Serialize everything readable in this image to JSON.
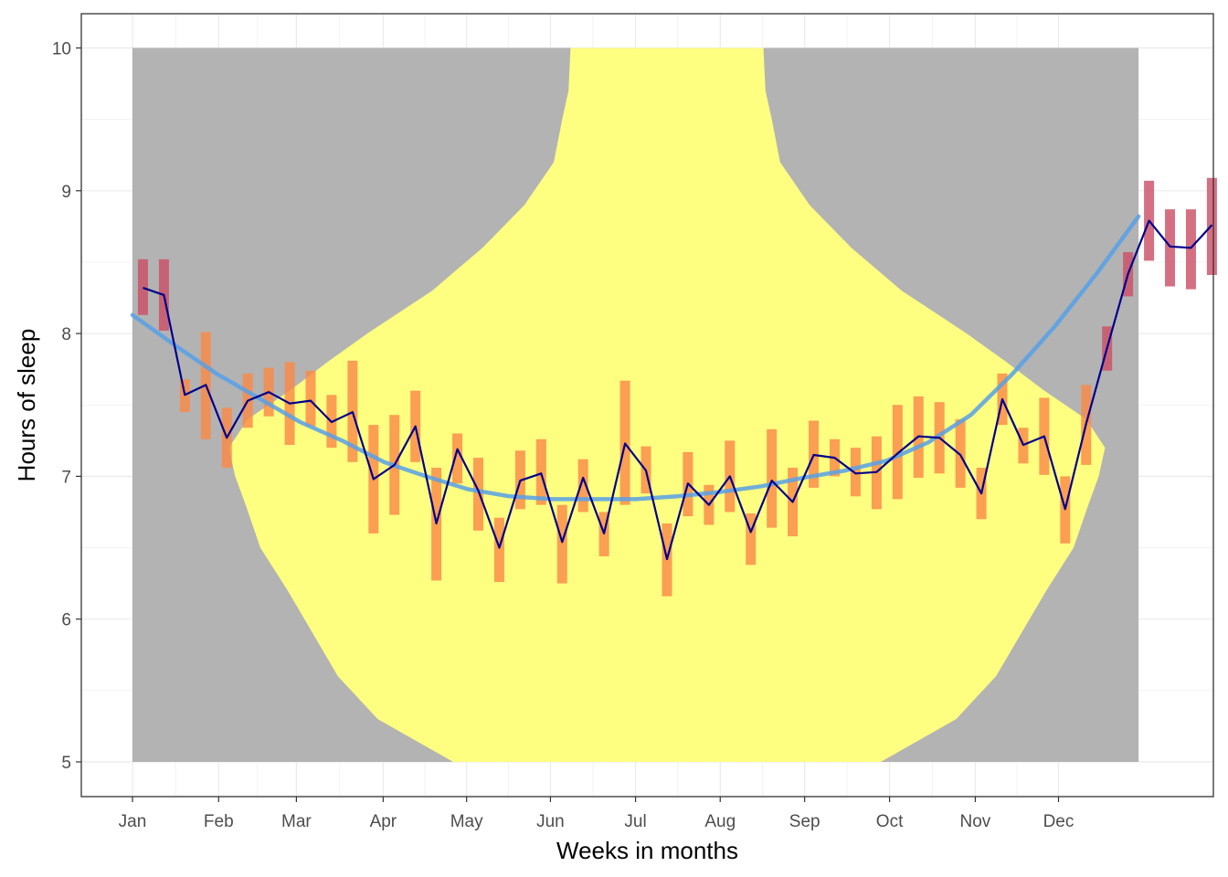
{
  "chart_data": {
    "type": "line",
    "title": "",
    "xlabel": "Weeks in months",
    "ylabel": "Hours of sleep",
    "xlim": [
      0,
      53
    ],
    "ylim": [
      5,
      10
    ],
    "x_tick_labels": [
      "Jan",
      "Feb",
      "Mar",
      "Apr",
      "May",
      "Jun",
      "Jul",
      "Aug",
      "Sep",
      "Oct",
      "Nov",
      "Dec"
    ],
    "x_tick_positions": [
      1,
      5.11,
      8.82,
      12.96,
      16.94,
      20.94,
      25,
      29.04,
      33.07,
      37.12,
      41.21,
      45.18
    ],
    "y_ticks": [
      5,
      6,
      7,
      8,
      9,
      10
    ],
    "grid": true,
    "background_band": {
      "x_from": 1,
      "x_to": 49,
      "y_from": 5,
      "y_to": 10,
      "color": "#b3b3b3"
    },
    "violin_color": "#ffff7f",
    "violin_half_width": [
      [
        5.0,
        10.2
      ],
      [
        5.3,
        13.8
      ],
      [
        5.6,
        15.7
      ],
      [
        5.9,
        16.9
      ],
      [
        6.2,
        18.1
      ],
      [
        6.5,
        19.4
      ],
      [
        6.8,
        20.1
      ],
      [
        7.0,
        20.6
      ],
      [
        7.2,
        20.9
      ],
      [
        7.4,
        20.0
      ],
      [
        7.6,
        18.0
      ],
      [
        7.8,
        16.2
      ],
      [
        8.0,
        14.3
      ],
      [
        8.3,
        11.2
      ],
      [
        8.6,
        8.8
      ],
      [
        8.9,
        6.8
      ],
      [
        9.2,
        5.4
      ],
      [
        9.5,
        5.0
      ],
      [
        9.7,
        4.7
      ],
      [
        10.0,
        4.6
      ]
    ],
    "weekly_mean": [
      8.32,
      8.27,
      7.57,
      7.64,
      7.27,
      7.53,
      7.59,
      7.51,
      7.53,
      7.38,
      7.45,
      6.98,
      7.08,
      7.35,
      6.67,
      7.19,
      6.9,
      6.5,
      6.97,
      7.02,
      6.54,
      6.99,
      6.6,
      7.23,
      7.04,
      6.42,
      6.95,
      6.8,
      7.0,
      6.61,
      6.97,
      6.82,
      7.15,
      7.13,
      7.02,
      7.03,
      7.16,
      7.28,
      7.27,
      7.15,
      6.88,
      7.54,
      7.22,
      7.28,
      6.77,
      7.37,
      7.9,
      8.42,
      8.79,
      8.61,
      8.6,
      8.76
    ],
    "weekly_range": [
      [
        8.13,
        8.52
      ],
      [
        8.02,
        8.52
      ],
      [
        7.45,
        7.68
      ],
      [
        7.26,
        8.01
      ],
      [
        7.06,
        7.48
      ],
      [
        7.34,
        7.72
      ],
      [
        7.42,
        7.76
      ],
      [
        7.22,
        7.8
      ],
      [
        7.35,
        7.74
      ],
      [
        7.2,
        7.57
      ],
      [
        7.1,
        7.81
      ],
      [
        6.6,
        7.36
      ],
      [
        6.73,
        7.43
      ],
      [
        7.1,
        7.6
      ],
      [
        6.27,
        7.06
      ],
      [
        6.95,
        7.3
      ],
      [
        6.62,
        7.13
      ],
      [
        6.26,
        6.71
      ],
      [
        6.77,
        7.18
      ],
      [
        6.8,
        7.26
      ],
      [
        6.25,
        6.8
      ],
      [
        6.75,
        7.12
      ],
      [
        6.44,
        6.75
      ],
      [
        6.8,
        7.67
      ],
      [
        6.88,
        7.21
      ],
      [
        6.16,
        6.67
      ],
      [
        6.72,
        7.17
      ],
      [
        6.66,
        6.94
      ],
      [
        6.75,
        7.25
      ],
      [
        6.38,
        6.74
      ],
      [
        6.64,
        7.33
      ],
      [
        6.58,
        7.06
      ],
      [
        6.92,
        7.39
      ],
      [
        7.0,
        7.26
      ],
      [
        6.86,
        7.2
      ],
      [
        6.77,
        7.28
      ],
      [
        6.84,
        7.5
      ],
      [
        6.99,
        7.56
      ],
      [
        7.02,
        7.52
      ],
      [
        6.92,
        7.4
      ],
      [
        6.7,
        7.06
      ],
      [
        7.36,
        7.72
      ],
      [
        7.09,
        7.34
      ],
      [
        7.01,
        7.55
      ],
      [
        6.53,
        7.0
      ],
      [
        7.08,
        7.64
      ],
      [
        7.74,
        8.05
      ],
      [
        8.26,
        8.57
      ],
      [
        8.51,
        9.07
      ],
      [
        8.33,
        8.87
      ],
      [
        8.31,
        8.87
      ],
      [
        8.41,
        9.09
      ]
    ],
    "smooth_trend": [
      [
        1,
        8.13
      ],
      [
        3,
        7.92
      ],
      [
        5,
        7.72
      ],
      [
        7,
        7.55
      ],
      [
        9,
        7.38
      ],
      [
        11,
        7.25
      ],
      [
        13,
        7.1
      ],
      [
        15,
        7.0
      ],
      [
        17,
        6.91
      ],
      [
        19,
        6.86
      ],
      [
        21,
        6.84
      ],
      [
        23,
        6.84
      ],
      [
        25,
        6.84
      ],
      [
        27,
        6.86
      ],
      [
        29,
        6.89
      ],
      [
        31,
        6.93
      ],
      [
        33,
        6.99
      ],
      [
        35,
        7.04
      ],
      [
        37,
        7.11
      ],
      [
        39,
        7.24
      ],
      [
        41,
        7.43
      ],
      [
        43,
        7.72
      ],
      [
        45,
        8.05
      ],
      [
        47,
        8.42
      ],
      [
        49,
        8.82
      ]
    ],
    "series": [
      {
        "name": "",
        "values": [],
        "color": "#00008b"
      }
    ],
    "colors": {
      "mean_line": "#00008b",
      "trend_line": "#56a0e8",
      "bar_high": "#cc5068",
      "bar_mid": "#fa8a48",
      "panel_grid": "#ebebeb"
    }
  }
}
